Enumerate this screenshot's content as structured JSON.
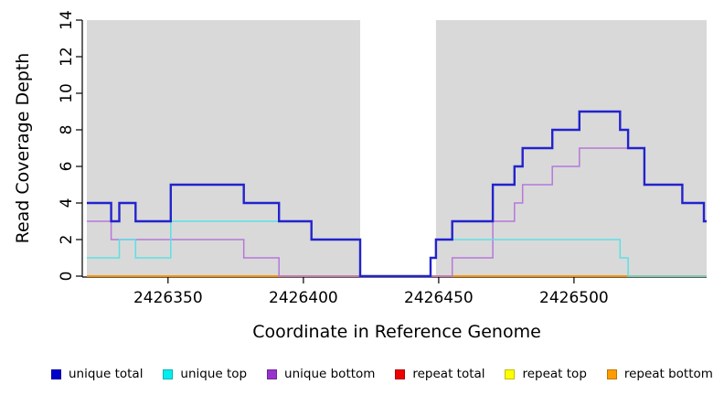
{
  "chart_data": {
    "type": "line",
    "subtype": "step-coverage",
    "title": "",
    "xlabel": "Coordinate in Reference Genome",
    "ylabel": "Read Coverage Depth",
    "xlim": [
      2426320,
      2426549
    ],
    "ylim": [
      0,
      14
    ],
    "xticks": [
      2426350,
      2426400,
      2426450,
      2426500
    ],
    "yticks": [
      0,
      2,
      4,
      6,
      8,
      10,
      12,
      14
    ],
    "grid": false,
    "shaded_regions": [
      {
        "name": "left-alignment-block",
        "from": 2426320,
        "to": 2426421
      },
      {
        "name": "right-alignment-block",
        "from": 2426449,
        "to": 2426549
      }
    ],
    "gap_region": {
      "from": 2426421,
      "to": 2426449
    },
    "colors": {
      "panel_bg": "#d9d9d9",
      "axis": "#000000",
      "unique_total": "#2323cd",
      "unique_top": "#5cdfe6",
      "unique_bottom": "#b678da",
      "repeat_total": "#e02020",
      "repeat_top": "#ffff00",
      "repeat_bottom": "#ff9800"
    },
    "series": [
      {
        "name": "repeat top",
        "color": "#ffff00",
        "width": 1.5,
        "points": [
          [
            2426320,
            0
          ]
        ]
      },
      {
        "name": "repeat total",
        "color": "#e02020",
        "width": 1.5,
        "points": [
          [
            2426320,
            0
          ]
        ]
      },
      {
        "name": "repeat bottom",
        "color": "#ff9800",
        "width": 1.8,
        "points": [
          [
            2426320,
            0
          ]
        ]
      },
      {
        "name": "unique bottom",
        "color": "#b678da",
        "width": 1.5,
        "points": [
          [
            2426320,
            3
          ],
          [
            2426329,
            2
          ],
          [
            2426378,
            1
          ],
          [
            2426391,
            0
          ],
          [
            2426455,
            1
          ],
          [
            2426470,
            3
          ],
          [
            2426478,
            4
          ],
          [
            2426481,
            5
          ],
          [
            2426492,
            6
          ],
          [
            2426502,
            7
          ],
          [
            2426526,
            5
          ],
          [
            2426540,
            4
          ],
          [
            2426548,
            3
          ]
        ]
      },
      {
        "name": "unique top",
        "color": "#5cdfe6",
        "width": 1.5,
        "points": [
          [
            2426320,
            1
          ],
          [
            2426332,
            2
          ],
          [
            2426338,
            1
          ],
          [
            2426351,
            3
          ],
          [
            2426403,
            2
          ],
          [
            2426421,
            0
          ],
          [
            2426447,
            1
          ],
          [
            2426449,
            2
          ],
          [
            2426517,
            1
          ],
          [
            2426520,
            0
          ]
        ]
      },
      {
        "name": "unique total",
        "color": "#2323cd",
        "width": 2.4,
        "points": [
          [
            2426320,
            4
          ],
          [
            2426329,
            3
          ],
          [
            2426332,
            4
          ],
          [
            2426338,
            3
          ],
          [
            2426351,
            5
          ],
          [
            2426378,
            4
          ],
          [
            2426391,
            3
          ],
          [
            2426403,
            2
          ],
          [
            2426421,
            0
          ],
          [
            2426447,
            1
          ],
          [
            2426449,
            2
          ],
          [
            2426455,
            3
          ],
          [
            2426470,
            5
          ],
          [
            2426478,
            6
          ],
          [
            2426481,
            7
          ],
          [
            2426492,
            8
          ],
          [
            2426502,
            9
          ],
          [
            2426517,
            8
          ],
          [
            2426520,
            7
          ],
          [
            2426526,
            5
          ],
          [
            2426540,
            4
          ],
          [
            2426548,
            3
          ]
        ]
      }
    ],
    "legend_position": "bottom",
    "legend": [
      {
        "label": "unique total",
        "color": "#0000cd"
      },
      {
        "label": "unique top",
        "color": "#00eeee"
      },
      {
        "label": "unique bottom",
        "color": "#9932cc"
      },
      {
        "label": "repeat total",
        "color": "#ee0000"
      },
      {
        "label": "repeat top",
        "color": "#ffff00"
      },
      {
        "label": "repeat bottom",
        "color": "#ff9d00"
      }
    ]
  }
}
